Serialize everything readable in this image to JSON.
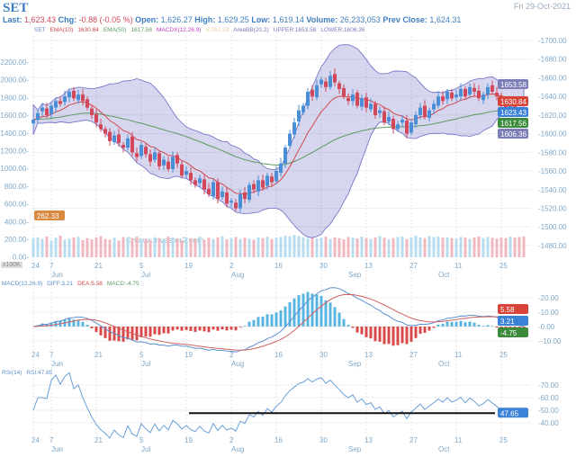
{
  "header": {
    "symbol": "SET",
    "date": "Fri 29-Oct-2021",
    "last_label": "Last:",
    "last": "1,623.43",
    "chg_label": "Chg:",
    "chg": "-0.88 (-0.05 %)",
    "open_label": "Open:",
    "open": "1,626.27",
    "high_label": "High:",
    "high": "1,629.25",
    "low_label": "Low:",
    "low": "1,619.14",
    "volume_label": "Volume:",
    "volume": "26,233,053",
    "prev_label": "Prev Close:",
    "prev": "1,624.31"
  },
  "legend_main": {
    "set": "SET",
    "ema10": "EMA(10)",
    "ema10_val": "1630.84",
    "ema50": "EMA(50)",
    "ema50_val": "1617.56",
    "macdx": "MACDX(12.26.9)",
    "v": "V:262.33",
    "bb": "AreaBB(20.2)",
    "upper": "UPPER:1653.58",
    "lower": "LOWER:1606.36"
  },
  "legend_macd": {
    "name": "MACD(12.26.9)",
    "diff": "DIFF:3.21",
    "dea": "DEA:5.58",
    "macd": "MACD:-4.75"
  },
  "legend_rsi": {
    "name": "RSI(14)",
    "rsi": "RSI:47.65"
  },
  "watermark": "© www.investor2.com",
  "volume_unit": "x100K",
  "tags": {
    "upper": "1653.58",
    "ema10": "1630.84",
    "last": "1623.43",
    "ema50": "1617.56",
    "lower": "1606.36",
    "volume": "262.33",
    "macd_dea": "5.58",
    "macd_diff": "3.21",
    "macd_hist": "-4.75",
    "rsi": "47.65"
  },
  "colors": {
    "up": "#4a8fd6",
    "down": "#d0485a",
    "ema10": "#d04848",
    "ema50": "#5c9a60",
    "band": "#6b6bc4",
    "vol_up": "#b8dcef",
    "vol_down": "#f0b8c0"
  },
  "chart_data": {
    "type": "candlestick",
    "title": "SET",
    "price_axis": {
      "ticks": [
        "1700.00",
        "1680.00",
        "1660.00",
        "1640.00",
        "1620.00",
        "1600.00",
        "1580.00",
        "1560.00",
        "1540.00",
        "1520.00",
        "1500.00",
        "1480.00"
      ],
      "range": [
        1470,
        1705
      ]
    },
    "volume_axis": {
      "ticks": [
        "2200.00",
        "2000.00",
        "1800.00",
        "1600.00",
        "1400.00",
        "1200.00",
        "1000.00",
        "800.00",
        "600.00",
        "400.00",
        "200.00",
        "0.00"
      ]
    },
    "x_ticks": [
      {
        "label": "24",
        "i": 0
      },
      {
        "label": "7",
        "i": 4
      },
      {
        "label": "21",
        "i": 14
      },
      {
        "label": "5",
        "i": 24
      },
      {
        "label": "19",
        "i": 34
      },
      {
        "label": "2",
        "i": 44
      },
      {
        "label": "16",
        "i": 54
      },
      {
        "label": "30",
        "i": 64
      },
      {
        "label": "13",
        "i": 74
      },
      {
        "label": "27",
        "i": 84
      },
      {
        "label": "11",
        "i": 94
      },
      {
        "label": "25",
        "i": 104
      }
    ],
    "months": [
      {
        "label": "Jun",
        "i": 4
      },
      {
        "label": "Jul",
        "i": 24
      },
      {
        "label": "Aug",
        "i": 44
      },
      {
        "label": "Sep",
        "i": 70
      },
      {
        "label": "Oct",
        "i": 90
      }
    ],
    "closes": [
      1615,
      1622,
      1628,
      1620,
      1630,
      1635,
      1632,
      1640,
      1645,
      1638,
      1642,
      1635,
      1628,
      1620,
      1612,
      1605,
      1600,
      1592,
      1598,
      1590,
      1585,
      1595,
      1580,
      1575,
      1588,
      1578,
      1570,
      1580,
      1565,
      1572,
      1562,
      1575,
      1568,
      1555,
      1560,
      1550,
      1545,
      1552,
      1540,
      1535,
      1548,
      1530,
      1538,
      1525,
      1528,
      1520,
      1535,
      1530,
      1545,
      1540,
      1550,
      1542,
      1555,
      1548,
      1560,
      1568,
      1585,
      1600,
      1612,
      1625,
      1630,
      1645,
      1640,
      1652,
      1658,
      1650,
      1662,
      1655,
      1648,
      1640,
      1635,
      1642,
      1630,
      1638,
      1628,
      1632,
      1620,
      1625,
      1612,
      1618,
      1605,
      1610,
      1615,
      1600,
      1612,
      1620,
      1628,
      1618,
      1625,
      1632,
      1640,
      1635,
      1645,
      1638,
      1642,
      1648,
      1640,
      1650,
      1645,
      1638,
      1642,
      1650,
      1645,
      1640,
      1632,
      1628,
      1630,
      1626,
      1624,
      1623.43
    ],
    "volumes": [
      240,
      250,
      230,
      260,
      210,
      245,
      270,
      220,
      235,
      250,
      260,
      215,
      240,
      225,
      250,
      265,
      230,
      220,
      245,
      210,
      255,
      235,
      240,
      260,
      220,
      230,
      215,
      250,
      240,
      225,
      260,
      245,
      230,
      215,
      250,
      240,
      235,
      260,
      220,
      245,
      230,
      250,
      265,
      225,
      240,
      255,
      230,
      245,
      235,
      220,
      250,
      240,
      260,
      230,
      245,
      255,
      270,
      260,
      280,
      265,
      250,
      240,
      255,
      235,
      245,
      260,
      230,
      250,
      240,
      225,
      255,
      245,
      235,
      260,
      240,
      230,
      250,
      265,
      245,
      225,
      240,
      255,
      260,
      230,
      245,
      270,
      250,
      240,
      265,
      255,
      260,
      245,
      250,
      240,
      235,
      255,
      245,
      230,
      250,
      260,
      240,
      255,
      245,
      235,
      250,
      240,
      260,
      245,
      255,
      262.33
    ],
    "macd": {
      "ticks": [
        "20.00",
        "10.00",
        "0.00",
        "-10.00"
      ],
      "range": [
        -12,
        26
      ]
    },
    "rsi": {
      "ticks": [
        "70.00",
        "60.00",
        "50.00",
        "40.00"
      ],
      "range": [
        25,
        80
      ],
      "support_level": 47.65
    }
  }
}
